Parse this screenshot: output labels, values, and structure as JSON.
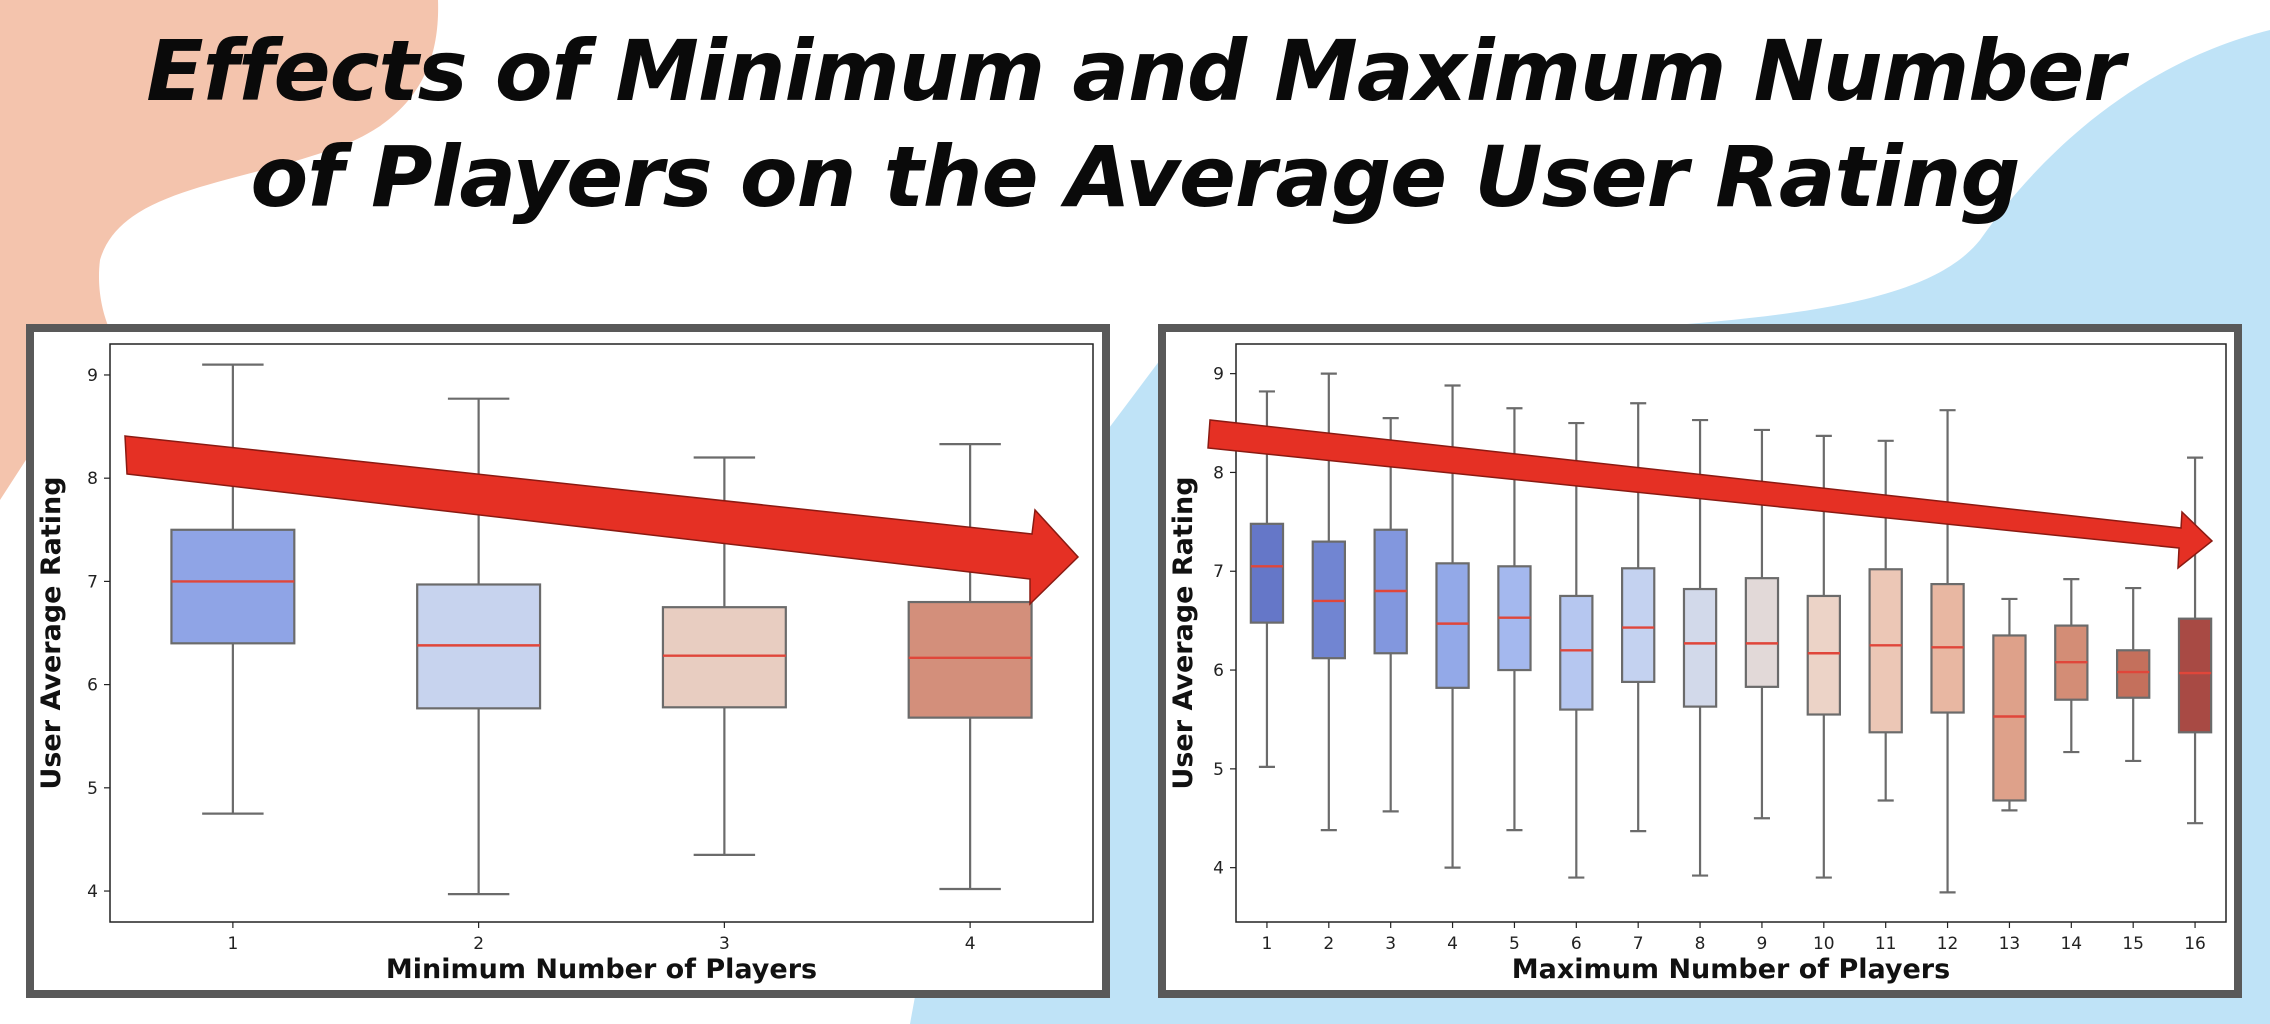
{
  "title_lines": [
    "Effects of Minimum and Maximum Number",
    "of Players on the Average User Rating"
  ],
  "colors": {
    "background_peach": "#f4c4ad",
    "background_blue": "#bfe3f7",
    "panel_border": "#595959",
    "arrow": "#e53024",
    "median": "#e0463a",
    "whisker": "#6b6b6b"
  },
  "chart_data": [
    {
      "type": "box",
      "xlabel": "Minimum Number of Players",
      "ylabel": "User Average Rating",
      "ylim": [
        3.7,
        9.3
      ],
      "yticks": [
        4,
        5,
        6,
        7,
        8,
        9
      ],
      "categories": [
        "1",
        "2",
        "3",
        "4"
      ],
      "boxes": [
        {
          "min": 4.75,
          "q1": 6.4,
          "median": 7.0,
          "q3": 7.5,
          "max": 9.1,
          "color": "#8fa4e6"
        },
        {
          "min": 3.97,
          "q1": 5.77,
          "median": 6.38,
          "q3": 6.97,
          "max": 8.77,
          "color": "#c7d3ee"
        },
        {
          "min": 4.35,
          "q1": 5.78,
          "median": 6.28,
          "q3": 6.75,
          "max": 8.2,
          "color": "#e8cdc1"
        },
        {
          "min": 4.02,
          "q1": 5.68,
          "median": 6.26,
          "q3": 6.8,
          "max": 8.33,
          "color": "#d38f7b"
        }
      ],
      "trend_arrow": "downward"
    },
    {
      "type": "box",
      "xlabel": "Maximum Number of Players",
      "ylabel": "User Average Rating",
      "ylim": [
        3.45,
        9.3
      ],
      "yticks": [
        4,
        5,
        6,
        7,
        8,
        9
      ],
      "categories": [
        "1",
        "2",
        "3",
        "4",
        "5",
        "6",
        "7",
        "8",
        "9",
        "10",
        "11",
        "12",
        "13",
        "14",
        "15",
        "16"
      ],
      "boxes": [
        {
          "min": 5.02,
          "q1": 6.48,
          "median": 7.05,
          "q3": 7.48,
          "max": 8.82,
          "color": "#6577c8"
        },
        {
          "min": 4.38,
          "q1": 6.12,
          "median": 6.7,
          "q3": 7.3,
          "max": 9.0,
          "color": "#7185d2"
        },
        {
          "min": 4.57,
          "q1": 6.17,
          "median": 6.8,
          "q3": 7.42,
          "max": 8.55,
          "color": "#8297de"
        },
        {
          "min": 4.0,
          "q1": 5.82,
          "median": 6.47,
          "q3": 7.08,
          "max": 8.88,
          "color": "#93a9e8"
        },
        {
          "min": 4.38,
          "q1": 6.0,
          "median": 6.53,
          "q3": 7.05,
          "max": 8.65,
          "color": "#a4b8ee"
        },
        {
          "min": 3.9,
          "q1": 5.6,
          "median": 6.2,
          "q3": 6.75,
          "max": 8.5,
          "color": "#b6c7f0"
        },
        {
          "min": 4.37,
          "q1": 5.88,
          "median": 6.43,
          "q3": 7.03,
          "max": 8.7,
          "color": "#c4d2f0"
        },
        {
          "min": 3.92,
          "q1": 5.63,
          "median": 6.27,
          "q3": 6.82,
          "max": 8.53,
          "color": "#d2d9ea"
        },
        {
          "min": 4.5,
          "q1": 5.83,
          "median": 6.27,
          "q3": 6.93,
          "max": 8.43,
          "color": "#e2d9d8"
        },
        {
          "min": 3.9,
          "q1": 5.55,
          "median": 6.17,
          "q3": 6.75,
          "max": 8.37,
          "color": "#ecd3c7"
        },
        {
          "min": 4.68,
          "q1": 5.37,
          "median": 6.25,
          "q3": 7.02,
          "max": 8.32,
          "color": "#ecc7b6"
        },
        {
          "min": 3.75,
          "q1": 5.57,
          "median": 6.23,
          "q3": 6.87,
          "max": 8.63,
          "color": "#e8b7a2"
        },
        {
          "min": 4.58,
          "q1": 4.68,
          "median": 5.53,
          "q3": 6.35,
          "max": 6.72,
          "color": "#dea18a"
        },
        {
          "min": 5.17,
          "q1": 5.7,
          "median": 6.08,
          "q3": 6.45,
          "max": 6.92,
          "color": "#d38d76"
        },
        {
          "min": 5.08,
          "q1": 5.72,
          "median": 5.98,
          "q3": 6.2,
          "max": 6.83,
          "color": "#c4705c"
        },
        {
          "min": 4.45,
          "q1": 5.37,
          "median": 5.97,
          "q3": 6.52,
          "max": 8.15,
          "color": "#a84a44"
        }
      ],
      "trend_arrow": "downward"
    }
  ]
}
